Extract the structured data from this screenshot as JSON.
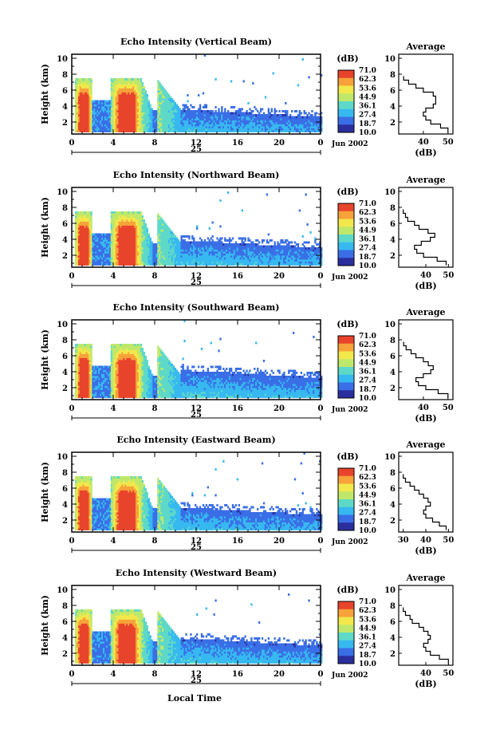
{
  "figure": {
    "xlabel_bottom": "Local Time",
    "date_label": "Jun 2002",
    "day_label": "25",
    "x_ticks": [
      "0",
      "4",
      "8",
      "12",
      "16",
      "20",
      "0"
    ],
    "colorbar_unit": "(dB)",
    "colorbar_levels": [
      "71.0",
      "62.3",
      "53.6",
      "44.9",
      "36.1",
      "27.4",
      "18.7",
      "10.0"
    ],
    "colors": {
      "scale": [
        "#2b2f9e",
        "#3a6ee6",
        "#37b9f0",
        "#5ed9c8",
        "#bfe86a",
        "#f2e84b",
        "#f7a23a",
        "#e8442c"
      ]
    }
  },
  "chart_data": [
    {
      "type": "heatmap",
      "title": "Echo Intensity (Vertical Beam)",
      "ylabel": "Height (km)",
      "x_unit": "local time (hours)",
      "xlim": [
        0,
        24
      ],
      "ylim": [
        0.5,
        10.5
      ],
      "yticks": [
        2,
        4,
        6,
        8,
        10
      ],
      "color_range_dB": [
        10.0,
        71.0
      ],
      "avg_profile": {
        "title": "Average",
        "xlabel": "(dB)",
        "xlim": [
          30,
          52
        ],
        "xticks": [
          40,
          50
        ],
        "heights_km": [
          1.0,
          1.5,
          2.0,
          2.5,
          3.0,
          3.5,
          4.0,
          4.5,
          5.0,
          5.5,
          6.0,
          6.5,
          7.0,
          7.5
        ],
        "values_dB": [
          50,
          47,
          43,
          41,
          40,
          41,
          44,
          45,
          45,
          44,
          40,
          37,
          34,
          32
        ]
      }
    },
    {
      "type": "heatmap",
      "title": "Echo Intensity (Northward Beam)",
      "ylabel": "Height (km)",
      "x_unit": "local time (hours)",
      "xlim": [
        0,
        24
      ],
      "ylim": [
        0.5,
        10.5
      ],
      "yticks": [
        2,
        4,
        6,
        8,
        10
      ],
      "color_range_dB": [
        10.0,
        71.0
      ],
      "avg_profile": {
        "title": "Average",
        "xlabel": "(dB)",
        "xlim": [
          28,
          52
        ],
        "xticks": [
          40,
          50
        ],
        "heights_km": [
          1.0,
          1.5,
          2.0,
          2.5,
          3.0,
          3.5,
          4.0,
          4.5,
          5.0,
          5.5,
          6.0,
          6.5,
          7.0,
          7.5
        ],
        "values_dB": [
          49,
          45,
          39,
          36,
          35,
          38,
          42,
          44,
          41,
          37,
          35,
          32,
          31,
          30
        ]
      }
    },
    {
      "type": "heatmap",
      "title": "Echo Intensity (Southward Beam)",
      "ylabel": "Height (km)",
      "x_unit": "local time (hours)",
      "xlim": [
        0,
        24
      ],
      "ylim": [
        0.5,
        10.5
      ],
      "yticks": [
        2,
        4,
        6,
        8,
        10
      ],
      "color_range_dB": [
        10.0,
        71.0
      ],
      "avg_profile": {
        "title": "Average",
        "xlabel": "(dB)",
        "xlim": [
          30,
          52
        ],
        "xticks": [
          40,
          50
        ],
        "heights_km": [
          1.0,
          1.5,
          2.0,
          2.5,
          3.0,
          3.5,
          4.0,
          4.5,
          5.0,
          5.5,
          6.0,
          6.5,
          7.0,
          7.5
        ],
        "values_dB": [
          50,
          46,
          41,
          38,
          37,
          40,
          43,
          44,
          42,
          40,
          37,
          35,
          33,
          32
        ]
      }
    },
    {
      "type": "heatmap",
      "title": "Echo Intensity (Eastward Beam)",
      "ylabel": "Height (km)",
      "x_unit": "local time (hours)",
      "xlim": [
        0,
        24
      ],
      "ylim": [
        0.5,
        10.5
      ],
      "yticks": [
        2,
        4,
        6,
        8,
        10
      ],
      "color_range_dB": [
        10.0,
        71.0
      ],
      "avg_profile": {
        "title": "Average",
        "xlabel": "(dB)",
        "xlim": [
          28,
          52
        ],
        "xticks": [
          30,
          40,
          50
        ],
        "heights_km": [
          1.0,
          1.5,
          2.0,
          2.5,
          3.0,
          3.5,
          4.0,
          4.5,
          5.0,
          5.5,
          6.0,
          6.5,
          7.0,
          7.5
        ],
        "values_dB": [
          49,
          46,
          43,
          40,
          39,
          40,
          42,
          41,
          39,
          37,
          35,
          33,
          31,
          30
        ]
      }
    },
    {
      "type": "heatmap",
      "title": "Echo Intensity (Westward Beam)",
      "ylabel": "Height (km)",
      "x_unit": "local time (hours)",
      "xlim": [
        0,
        24
      ],
      "ylim": [
        0.5,
        10.5
      ],
      "yticks": [
        2,
        4,
        6,
        8,
        10
      ],
      "color_range_dB": [
        10.0,
        71.0
      ],
      "avg_profile": {
        "title": "Average",
        "xlabel": "(dB)",
        "xlim": [
          28,
          52
        ],
        "xticks": [
          40,
          50
        ],
        "heights_km": [
          1.0,
          1.5,
          2.0,
          2.5,
          3.0,
          3.5,
          4.0,
          4.5,
          5.0,
          5.5,
          6.0,
          6.5,
          7.0,
          7.5
        ],
        "values_dB": [
          50,
          46,
          42,
          40,
          39,
          41,
          42,
          41,
          39,
          37,
          34,
          33,
          31,
          30
        ]
      }
    }
  ]
}
